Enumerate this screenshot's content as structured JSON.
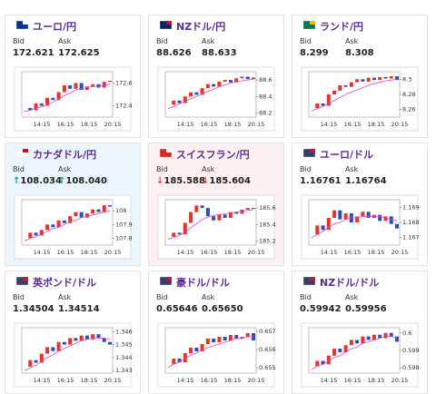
{
  "cards": [
    {
      "title": "ユーロ/円",
      "bid_label": "Bid",
      "ask_label": "Ask",
      "bid": "172.621",
      "ask": "172.625",
      "chart": {
        "ylim": [
          172.3,
          172.7
        ],
        "yticks": [
          172.6,
          172.4
        ],
        "time_labels": [
          "14:15",
          "16:15",
          "18:15",
          "20:15"
        ],
        "closes": [
          172.38,
          172.36,
          172.42,
          172.4,
          172.47,
          172.45,
          172.52,
          172.58,
          172.55,
          172.6,
          172.54,
          172.57,
          172.59,
          172.56,
          172.61,
          172.62
        ],
        "ma": [
          172.35,
          172.36,
          172.38,
          172.39,
          172.41,
          172.43,
          172.46,
          172.49,
          172.51,
          172.54,
          172.55,
          172.56,
          172.57,
          172.57,
          172.58,
          172.59
        ]
      }
    },
    {
      "title": "NZドル/円",
      "bid_label": "Bid",
      "ask_label": "Ask",
      "bid": "88.626",
      "ask": "88.633",
      "chart": {
        "ylim": [
          88.15,
          88.7
        ],
        "yticks": [
          88.6,
          88.4,
          88.2
        ],
        "time_labels": [
          "14:15",
          "16:15",
          "18:15",
          "20:15"
        ],
        "closes": [
          88.3,
          88.35,
          88.32,
          88.4,
          88.45,
          88.42,
          88.5,
          88.55,
          88.52,
          88.58,
          88.6,
          88.57,
          88.62,
          88.64,
          88.61,
          88.63
        ],
        "ma": [
          88.25,
          88.28,
          88.31,
          88.34,
          88.37,
          88.4,
          88.43,
          88.46,
          88.49,
          88.52,
          88.54,
          88.56,
          88.58,
          88.59,
          88.6,
          88.61
        ]
      }
    },
    {
      "title": "ランド/円",
      "bid_label": "Bid",
      "ask_label": "Ask",
      "bid": "8.299",
      "ask": "8.308",
      "chart": {
        "ylim": [
          8.25,
          8.31
        ],
        "yticks": [
          8.3,
          8.28,
          8.26
        ],
        "time_labels": [
          "14:15",
          "16:15",
          "18:15",
          "20:15"
        ],
        "closes": [
          8.262,
          8.268,
          8.265,
          8.28,
          8.285,
          8.292,
          8.29,
          8.296,
          8.3,
          8.297,
          8.302,
          8.299,
          8.303,
          8.301,
          8.304,
          8.299
        ],
        "ma": [
          8.258,
          8.261,
          8.264,
          8.268,
          8.272,
          8.276,
          8.28,
          8.283,
          8.286,
          8.289,
          8.292,
          8.294,
          8.296,
          8.298,
          8.299,
          8.3
        ]
      }
    },
    {
      "title": "カナダドル/円",
      "bid_label": "Bid",
      "ask_label": "Ask",
      "bid": "108.034",
      "ask": "108.040",
      "direction": "↑",
      "background": "#eaf5fc",
      "chart": {
        "ylim": [
          107.75,
          108.08
        ],
        "yticks": [
          108,
          107.9,
          107.8
        ],
        "time_labels": [
          "14:15",
          "16:15",
          "18:15",
          "20:15"
        ],
        "closes": [
          107.8,
          107.84,
          107.82,
          107.86,
          107.9,
          107.88,
          107.93,
          107.91,
          107.96,
          107.99,
          107.95,
          107.98,
          108.01,
          107.99,
          108.04,
          108.03
        ],
        "ma": [
          107.78,
          107.8,
          107.81,
          107.83,
          107.85,
          107.87,
          107.88,
          107.9,
          107.92,
          107.93,
          107.95,
          107.96,
          107.97,
          107.98,
          107.99,
          108.0
        ]
      }
    },
    {
      "title": "スイスフラン/円",
      "bid_label": "Bid",
      "ask_label": "Ask",
      "bid": "185.588",
      "ask": "185.604",
      "direction": "↓",
      "background": "#fdf0f0",
      "chart": {
        "ylim": [
          185.15,
          185.7
        ],
        "yticks": [
          185.6,
          185.4,
          185.2
        ],
        "time_labels": [
          "14:15",
          "16:15",
          "18:15",
          "20:15"
        ],
        "closes": [
          185.25,
          185.3,
          185.28,
          185.42,
          185.55,
          185.63,
          185.6,
          185.5,
          185.45,
          185.52,
          185.48,
          185.55,
          185.53,
          185.58,
          185.6,
          185.59
        ],
        "ma": [
          185.22,
          185.24,
          185.27,
          185.31,
          185.36,
          185.41,
          185.46,
          185.49,
          185.51,
          185.52,
          185.53,
          185.54,
          185.55,
          185.56,
          185.57,
          185.58
        ]
      }
    },
    {
      "title": "ユーロ/ドル",
      "bid_label": "Bid",
      "ask_label": "Ask",
      "bid": "1.16761",
      "ask": "1.16764",
      "chart": {
        "ylim": [
          1.1665,
          1.1695
        ],
        "yticks": [
          1.169,
          1.168,
          1.167
        ],
        "time_labels": [
          "14:15",
          "16:15",
          "18:15",
          "20:15"
        ],
        "closes": [
          1.1672,
          1.1678,
          1.1675,
          1.1683,
          1.1688,
          1.1682,
          1.1686,
          1.168,
          1.1684,
          1.1687,
          1.1683,
          1.1685,
          1.1681,
          1.1684,
          1.1679,
          1.1676
        ],
        "ma": [
          1.167,
          1.1672,
          1.1674,
          1.1677,
          1.1679,
          1.168,
          1.1682,
          1.1683,
          1.1683,
          1.1684,
          1.1684,
          1.1684,
          1.1684,
          1.1683,
          1.1682,
          1.1681
        ]
      }
    },
    {
      "title": "英ポンド/ドル",
      "bid_label": "Bid",
      "ask_label": "Ask",
      "bid": "1.34504",
      "ask": "1.34514",
      "chart": {
        "ylim": [
          1.3428,
          1.3463
        ],
        "yticks": [
          1.346,
          1.345,
          1.344,
          1.343
        ],
        "time_labels": [
          "14:15",
          "16:15",
          "18:15",
          "20:15"
        ],
        "closes": [
          1.3433,
          1.3438,
          1.3436,
          1.3443,
          1.3448,
          1.3445,
          1.3452,
          1.345,
          1.3455,
          1.3453,
          1.3457,
          1.3454,
          1.3458,
          1.3455,
          1.3452,
          1.345
        ],
        "ma": [
          1.343,
          1.3432,
          1.3434,
          1.3437,
          1.344,
          1.3442,
          1.3445,
          1.3447,
          1.3449,
          1.3451,
          1.3453,
          1.3454,
          1.3455,
          1.3455,
          1.3455,
          1.3454
        ]
      }
    },
    {
      "title": "豪ドル/ドル",
      "bid_label": "Bid",
      "ask_label": "Ask",
      "bid": "0.65646",
      "ask": "0.65650",
      "chart": {
        "ylim": [
          0.6547,
          0.6572
        ],
        "yticks": [
          0.657,
          0.656,
          0.655
        ],
        "time_labels": [
          "14:15",
          "16:15",
          "18:15",
          "20:15"
        ],
        "closes": [
          0.6552,
          0.6555,
          0.6553,
          0.6558,
          0.6561,
          0.6559,
          0.6563,
          0.6566,
          0.6564,
          0.6567,
          0.6565,
          0.6568,
          0.6566,
          0.6567,
          0.6569,
          0.6565
        ],
        "ma": [
          0.655,
          0.6552,
          0.6553,
          0.6555,
          0.6557,
          0.6558,
          0.656,
          0.6561,
          0.6562,
          0.6563,
          0.6564,
          0.6565,
          0.6566,
          0.6566,
          0.6567,
          0.6567
        ]
      }
    },
    {
      "title": "NZドル/ドル",
      "bid_label": "Bid",
      "ask_label": "Ask",
      "bid": "0.59942",
      "ask": "0.59956",
      "chart": {
        "ylim": [
          0.5977,
          0.6003
        ],
        "yticks": [
          0.6,
          0.599,
          0.598
        ],
        "time_labels": [
          "14:15",
          "16:15",
          "18:15",
          "20:15"
        ],
        "closes": [
          0.5981,
          0.5984,
          0.5982,
          0.5987,
          0.5991,
          0.5989,
          0.5993,
          0.5996,
          0.5994,
          0.5998,
          0.5996,
          0.5999,
          0.5997,
          0.6,
          0.5998,
          0.5995
        ],
        "ma": [
          0.5979,
          0.5981,
          0.5982,
          0.5984,
          0.5986,
          0.5987,
          0.5989,
          0.5991,
          0.5992,
          0.5994,
          0.5995,
          0.5996,
          0.5997,
          0.5998,
          0.5998,
          0.5997
        ]
      }
    }
  ]
}
